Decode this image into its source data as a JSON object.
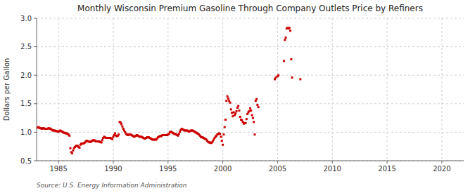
{
  "chart_data": {
    "type": "scatter",
    "title": "Monthly Wisconsin Premium Gasoline Through Company Outlets Price by Refiners",
    "ylabel": "Dollars per Gallon",
    "annotations": [
      "Source: U.S. Energy Information Administration"
    ],
    "color": "#cc0000",
    "marker": "square",
    "grid": true,
    "xlim": [
      1983.0,
      2022.0
    ],
    "ylim": [
      0.5,
      3.0
    ],
    "xticks": [
      1985,
      1990,
      1995,
      2000,
      2005,
      2010,
      2015,
      2020
    ],
    "yticks": [
      0.5,
      {
        "value": 1.0,
        "label": "1.0"
      },
      1.5,
      {
        "value": 2.0,
        "label": "2.0"
      },
      2.5,
      {
        "value": 3.0,
        "label": "3.0"
      }
    ],
    "x": [
      1983.083,
      1983.167,
      1983.25,
      1983.333,
      1983.417,
      1983.5,
      1983.583,
      1983.667,
      1983.75,
      1983.833,
      1983.917,
      1984.0,
      1984.083,
      1984.167,
      1984.25,
      1984.333,
      1984.417,
      1984.5,
      1984.583,
      1984.667,
      1984.75,
      1984.833,
      1984.917,
      1985.0,
      1985.083,
      1985.167,
      1985.25,
      1985.333,
      1985.417,
      1985.5,
      1985.583,
      1985.667,
      1985.75,
      1985.833,
      1985.917,
      1986.0,
      1986.083,
      1986.167,
      1986.25,
      1986.333,
      1986.417,
      1986.5,
      1986.583,
      1986.667,
      1986.75,
      1986.833,
      1986.917,
      1987.0,
      1987.083,
      1987.167,
      1987.25,
      1987.333,
      1987.417,
      1987.5,
      1987.583,
      1987.667,
      1987.75,
      1987.833,
      1987.917,
      1988.0,
      1988.083,
      1988.167,
      1988.25,
      1988.333,
      1988.417,
      1988.5,
      1988.583,
      1988.667,
      1988.75,
      1988.833,
      1988.917,
      1989.0,
      1989.083,
      1989.167,
      1989.25,
      1989.333,
      1989.417,
      1989.5,
      1989.583,
      1989.667,
      1989.75,
      1989.833,
      1989.917,
      1990.0,
      1990.083,
      1990.167,
      1990.25,
      1990.333,
      1990.417,
      1990.5,
      1990.583,
      1990.667,
      1990.75,
      1990.833,
      1990.917,
      1991.0,
      1991.083,
      1991.167,
      1991.25,
      1991.333,
      1991.417,
      1991.5,
      1991.583,
      1991.667,
      1991.75,
      1991.833,
      1991.917,
      1992.0,
      1992.083,
      1992.167,
      1992.25,
      1992.333,
      1992.417,
      1992.5,
      1992.583,
      1992.667,
      1992.75,
      1992.833,
      1992.917,
      1993.0,
      1993.083,
      1993.167,
      1993.25,
      1993.333,
      1993.417,
      1993.5,
      1993.583,
      1993.667,
      1993.75,
      1993.833,
      1993.917,
      1994.0,
      1994.083,
      1994.167,
      1994.25,
      1994.333,
      1994.417,
      1994.5,
      1994.583,
      1994.667,
      1994.75,
      1994.833,
      1994.917,
      1995.0,
      1995.083,
      1995.167,
      1995.25,
      1995.333,
      1995.417,
      1995.5,
      1995.583,
      1995.667,
      1995.75,
      1995.833,
      1995.917,
      1996.0,
      1996.083,
      1996.167,
      1996.25,
      1996.333,
      1996.417,
      1996.5,
      1996.583,
      1996.667,
      1996.75,
      1996.833,
      1996.917,
      1997.0,
      1997.083,
      1997.167,
      1997.25,
      1997.333,
      1997.417,
      1997.5,
      1997.583,
      1997.667,
      1997.75,
      1997.833,
      1997.917,
      1998.0,
      1998.083,
      1998.167,
      1998.25,
      1998.333,
      1998.417,
      1998.5,
      1998.583,
      1998.667,
      1998.75,
      1998.833,
      1998.917,
      1999.0,
      1999.083,
      1999.167,
      1999.25,
      1999.333,
      1999.417,
      1999.5,
      1999.583,
      1999.667,
      1999.75,
      1999.833,
      1999.917,
      2000.0,
      2000.083,
      2000.167,
      2000.25,
      2000.333,
      2000.417,
      2000.5,
      2000.583,
      2000.667,
      2000.75,
      2000.833,
      2000.917,
      2001.0,
      2001.083,
      2001.167,
      2001.25,
      2001.333,
      2001.417,
      2001.5,
      2001.583,
      2001.667,
      2001.75,
      2001.833,
      2001.917,
      2002.0,
      2002.083,
      2002.167,
      2002.25,
      2002.333,
      2002.417,
      2002.5,
      2002.583,
      2002.667,
      2002.75,
      2002.833,
      2002.917,
      2003.0,
      2003.083,
      2003.167,
      2003.25,
      2004.75,
      2004.833,
      2005.0,
      2005.083,
      2005.583,
      2005.667,
      2005.75,
      2005.833,
      2005.917,
      2006.0,
      2006.083,
      2006.167,
      2006.25,
      2006.333,
      2007.083
    ],
    "values": [
      1.08,
      1.09,
      1.08,
      1.07,
      1.07,
      1.06,
      1.07,
      1.07,
      1.06,
      1.06,
      1.06,
      1.06,
      1.07,
      1.07,
      1.06,
      1.05,
      1.04,
      1.03,
      1.03,
      1.03,
      1.02,
      1.02,
      1.01,
      1.01,
      1.02,
      1.03,
      1.02,
      1.01,
      1.0,
      0.99,
      0.99,
      0.98,
      0.98,
      0.97,
      0.96,
      0.94,
      0.72,
      0.65,
      0.63,
      0.68,
      0.72,
      0.74,
      0.76,
      0.76,
      0.76,
      0.74,
      0.73,
      0.78,
      0.8,
      0.8,
      0.8,
      0.81,
      0.82,
      0.84,
      0.85,
      0.84,
      0.84,
      0.83,
      0.83,
      0.84,
      0.85,
      0.86,
      0.86,
      0.85,
      0.84,
      0.84,
      0.84,
      0.84,
      0.83,
      0.83,
      0.82,
      0.86,
      0.9,
      0.92,
      0.91,
      0.9,
      0.9,
      0.9,
      0.9,
      0.9,
      0.9,
      0.89,
      0.88,
      0.92,
      0.95,
      0.98,
      0.94,
      0.93,
      0.94,
      0.96,
      1.18,
      1.17,
      1.14,
      1.1,
      1.06,
      1.03,
      1.0,
      0.97,
      0.96,
      0.95,
      0.96,
      0.96,
      0.96,
      0.95,
      0.94,
      0.93,
      0.92,
      0.93,
      0.94,
      0.95,
      0.94,
      0.93,
      0.92,
      0.92,
      0.92,
      0.91,
      0.9,
      0.89,
      0.89,
      0.9,
      0.91,
      0.91,
      0.91,
      0.9,
      0.89,
      0.88,
      0.87,
      0.87,
      0.87,
      0.87,
      0.87,
      0.89,
      0.91,
      0.92,
      0.93,
      0.93,
      0.94,
      0.95,
      0.95,
      0.95,
      0.95,
      0.95,
      0.95,
      0.96,
      0.97,
      1.0,
      1.01,
      1.0,
      0.99,
      0.98,
      0.97,
      0.97,
      0.96,
      0.95,
      0.94,
      0.97,
      1.01,
      1.04,
      1.06,
      1.05,
      1.04,
      1.03,
      1.03,
      1.03,
      1.03,
      1.02,
      1.01,
      1.02,
      1.03,
      1.03,
      1.03,
      1.02,
      1.01,
      1.0,
      0.99,
      0.98,
      0.97,
      0.96,
      0.94,
      0.92,
      0.91,
      0.91,
      0.9,
      0.89,
      0.88,
      0.87,
      0.85,
      0.83,
      0.82,
      0.82,
      0.81,
      0.82,
      0.84,
      0.87,
      0.9,
      0.92,
      0.94,
      0.96,
      0.97,
      0.98,
      0.97,
      0.92,
      0.85,
      0.78,
      0.96,
      1.09,
      1.22,
      1.55,
      1.63,
      1.59,
      1.55,
      1.52,
      1.4,
      1.34,
      1.28,
      1.35,
      1.3,
      1.33,
      1.37,
      1.43,
      1.46,
      1.38,
      1.27,
      1.22,
      1.21,
      1.18,
      1.15,
      1.16,
      1.16,
      1.23,
      1.32,
      1.35,
      1.37,
      1.42,
      1.38,
      1.3,
      1.25,
      1.18,
      0.96,
      1.55,
      1.58,
      1.48,
      1.44,
      1.93,
      1.96,
      1.98,
      2.0,
      2.25,
      2.62,
      2.66,
      2.82,
      2.83,
      2.82,
      2.83,
      2.78,
      2.28,
      1.96,
      1.93
    ]
  }
}
